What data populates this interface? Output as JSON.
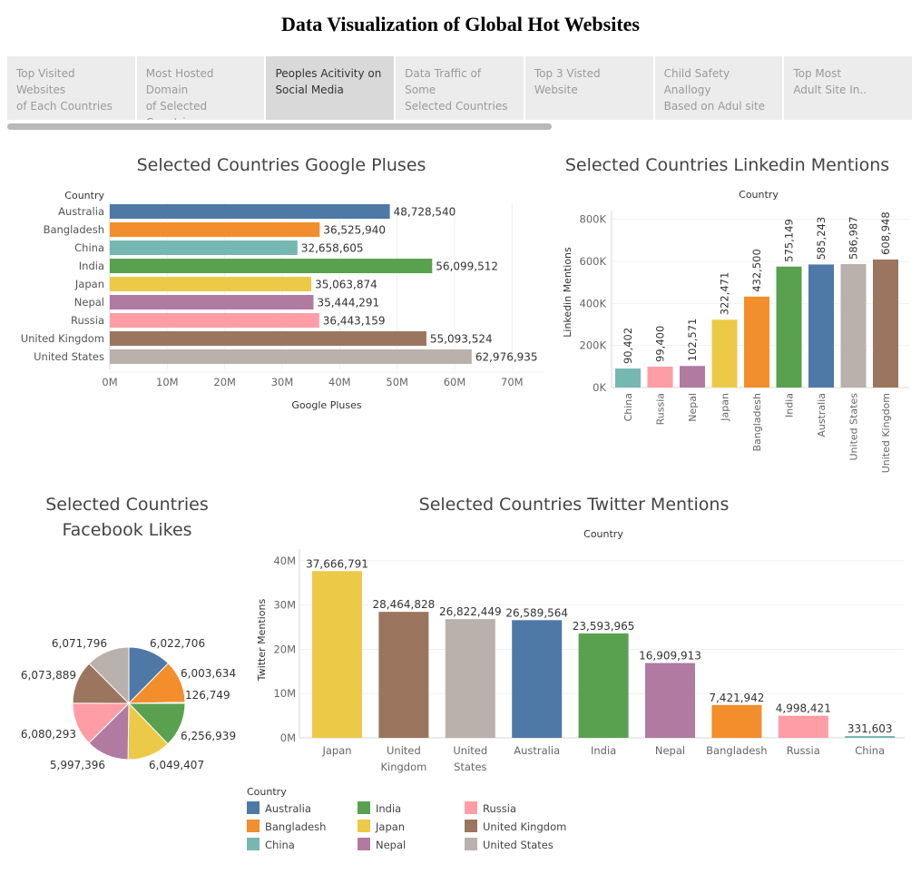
{
  "title": "Data Visualization of Global Hot Websites",
  "tabs": [
    {
      "line1": "Top Visited Websites",
      "line2": "of Each Countries",
      "active": false
    },
    {
      "line1": "Most Hosted Domain",
      "line2": "of Selected Countries",
      "active": false
    },
    {
      "line1": "Peoples Acitivity on",
      "line2": "Social Media",
      "active": true
    },
    {
      "line1": "Data Traffic of Some",
      "line2": "Selected Countries",
      "active": false
    },
    {
      "line1": "Top 3 Visted Website",
      "line2": "",
      "active": false
    },
    {
      "line1": "Child Safety Anallogy",
      "line2": "Based on Adul site",
      "active": false
    },
    {
      "line1": "Top Most",
      "line2": "Adult Site In..",
      "active": false
    }
  ],
  "colors": {
    "Australia": "#4e79a7",
    "Bangladesh": "#f28e2b",
    "China": "#76b7b2",
    "India": "#59a14f",
    "Japan": "#edc948",
    "Nepal": "#b07aa1",
    "Russia": "#ff9da7",
    "United Kingdom": "#9c755f",
    "United States": "#bab0ac"
  },
  "chart_data": [
    {
      "id": "google",
      "type": "bar",
      "orientation": "horizontal",
      "title": "Selected Countries Google Pluses",
      "category_header": "Country",
      "xlabel": "Google Pluses",
      "categories": [
        "Australia",
        "Bangladesh",
        "China",
        "India",
        "Japan",
        "Nepal",
        "Russia",
        "United Kingdom",
        "United States"
      ],
      "values": [
        48728540,
        36525940,
        32658605,
        56099512,
        35063874,
        35444291,
        36443159,
        55093524,
        62976935
      ],
      "value_labels": [
        "48,728,540",
        "36,525,940",
        "32,658,605",
        "56,099,512",
        "35,063,874",
        "35,444,291",
        "36,443,159",
        "55,093,524",
        "62,976,935"
      ],
      "xlim": [
        0,
        75000000
      ],
      "ticks": [
        0,
        10000000,
        20000000,
        30000000,
        40000000,
        50000000,
        60000000,
        70000000
      ],
      "tick_labels": [
        "0M",
        "10M",
        "20M",
        "30M",
        "40M",
        "50M",
        "60M",
        "70M"
      ]
    },
    {
      "id": "linkedin",
      "type": "bar",
      "orientation": "vertical",
      "title": "Selected Countries Linkedin Mentions",
      "category_header": "Country",
      "ylabel": "Linkedin Mentions",
      "categories": [
        "China",
        "Russia",
        "Nepal",
        "Japan",
        "Bangladesh",
        "India",
        "Australia",
        "United States",
        "United Kingdom"
      ],
      "values": [
        90402,
        99400,
        102571,
        322471,
        432500,
        575149,
        585243,
        586987,
        608948
      ],
      "value_labels": [
        "90,402",
        "99,400",
        "102,571",
        "322,471",
        "432,500",
        "575,149",
        "585,243",
        "586,987",
        "608,948"
      ],
      "ylim": [
        0,
        820000
      ],
      "ticks": [
        0,
        200000,
        400000,
        600000,
        800000
      ],
      "tick_labels": [
        "0K",
        "200K",
        "400K",
        "600K",
        "800K"
      ]
    },
    {
      "id": "facebook",
      "type": "pie",
      "title": "Selected Countries Facebook Likes",
      "title_lines": [
        "Selected Countries",
        "Facebook Likes"
      ],
      "categories": [
        "Australia",
        "Bangladesh",
        "China",
        "India",
        "Japan",
        "Nepal",
        "Russia",
        "United Kingdom",
        "United States"
      ],
      "values": [
        6022706,
        6003634,
        126749,
        6256939,
        6049407,
        5997396,
        6080293,
        6073889,
        6071796
      ],
      "value_labels": [
        "6,022,706",
        "6,003,634",
        "126,749",
        "6,256,939",
        "6,049,407",
        "5,997,396",
        "6,080,293",
        "6,073,889",
        "6,071,796"
      ]
    },
    {
      "id": "twitter",
      "type": "bar",
      "orientation": "vertical",
      "title": "Selected Countries Twitter Mentions",
      "category_header": "Country",
      "ylabel": "Twitter Mentions",
      "categories": [
        "Japan",
        "United Kingdom",
        "United States",
        "Australia",
        "India",
        "Nepal",
        "Bangladesh",
        "Russia",
        "China"
      ],
      "category_lines": [
        [
          "Japan"
        ],
        [
          "United",
          "Kingdom"
        ],
        [
          "United",
          "States"
        ],
        [
          "Australia"
        ],
        [
          "India"
        ],
        [
          "Nepal"
        ],
        [
          "Bangladesh"
        ],
        [
          "Russia"
        ],
        [
          "China"
        ]
      ],
      "values": [
        37666791,
        28464828,
        26822449,
        26589564,
        23593965,
        16909913,
        7421942,
        4998421,
        331603
      ],
      "value_labels": [
        "37,666,791",
        "28,464,828",
        "26,822,449",
        "26,589,564",
        "23,593,965",
        "16,909,913",
        "7,421,942",
        "4,998,421",
        "331,603"
      ],
      "ylim": [
        0,
        41000000
      ],
      "ticks": [
        0,
        10000000,
        20000000,
        30000000,
        40000000
      ],
      "tick_labels": [
        "0M",
        "10M",
        "20M",
        "30M",
        "40M"
      ]
    }
  ],
  "legend": {
    "title": "Country",
    "items": [
      "Australia",
      "Bangladesh",
      "China",
      "India",
      "Japan",
      "Nepal",
      "Russia",
      "United Kingdom",
      "United States"
    ]
  }
}
